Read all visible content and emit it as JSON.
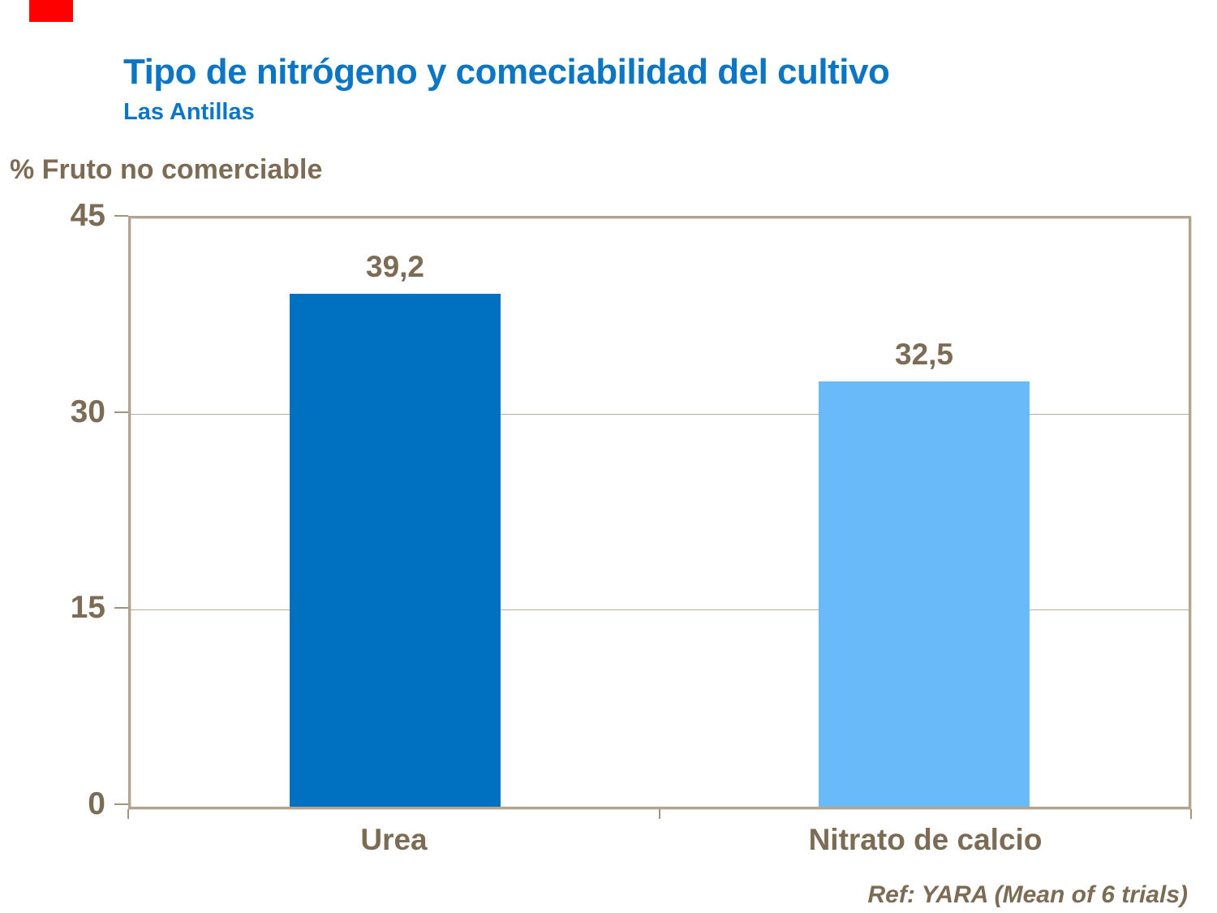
{
  "header": {
    "title": "Tipo de nitrógeno y comeciabilidad del cultivo",
    "subtitle": "Las Antillas",
    "title_color": "#0D76C4"
  },
  "footer": {
    "ref": "Ref: YARA (Mean of 6 trials)"
  },
  "decor": {
    "red_marker_color": "#FF0000"
  },
  "colors": {
    "text_brown": "#7D6C55",
    "frame_tan": "#B3A492",
    "gridline": "#B9AC9C",
    "tick": "#A3947E"
  },
  "chart_data": {
    "type": "bar",
    "title": "Tipo de nitrógeno y comeciabilidad del cultivo — Las Antillas",
    "ylabel": "% Fruto no comerciable",
    "xlabel": "",
    "categories": [
      "Urea",
      "Nitrato de calcio"
    ],
    "values": [
      39.2,
      32.5
    ],
    "value_labels": [
      "39,2",
      "32,5"
    ],
    "bar_colors": [
      "#0070C0",
      "#68BBF8"
    ],
    "ylim": [
      0,
      45
    ],
    "y_ticks": [
      {
        "value": 45,
        "label": "45"
      },
      {
        "value": 30,
        "label": "30"
      },
      {
        "value": 15,
        "label": "15"
      },
      {
        "value": 0,
        "label": "0"
      }
    ],
    "grid": "horizontal gridlines at interior ticks (15, 30)",
    "legend": "none",
    "annotation": "Ref: YARA (Mean of 6 trials)"
  }
}
